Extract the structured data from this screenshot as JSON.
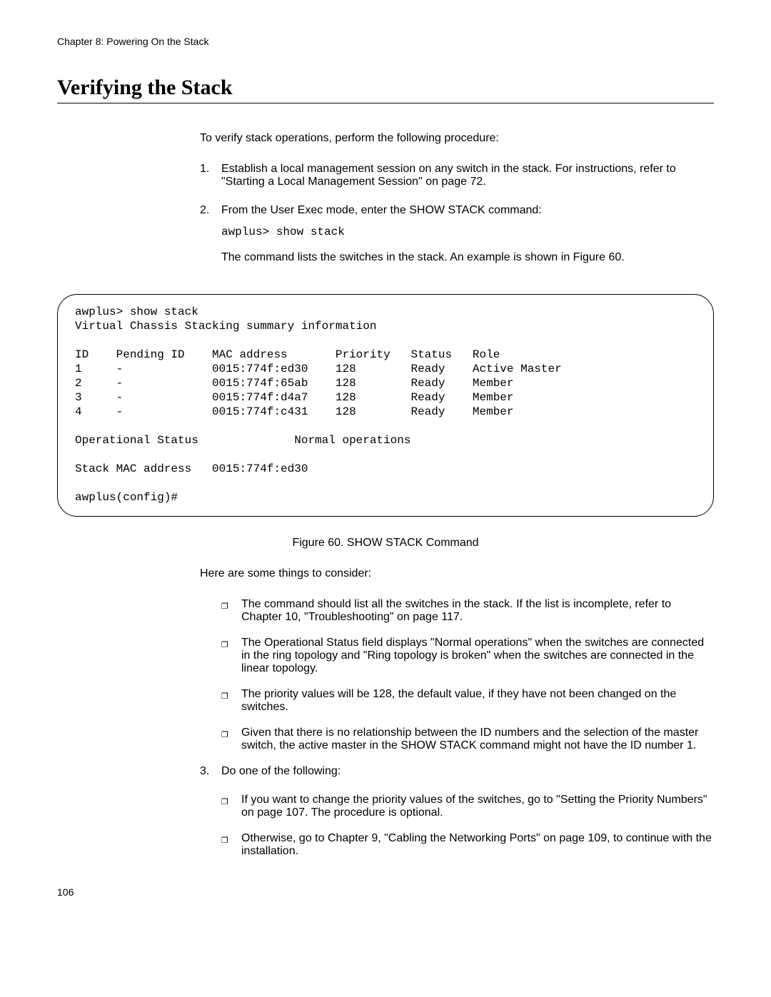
{
  "header": {
    "chapter": "Chapter 8: Powering On the Stack"
  },
  "title": "Verifying the Stack",
  "intro": "To verify stack operations, perform the following procedure:",
  "steps": {
    "s1": {
      "num": "1.",
      "text": "Establish a local management session on any switch in the stack. For instructions, refer to \"Starting a Local Management Session\" on page 72."
    },
    "s2": {
      "num": "2.",
      "text": "From the User Exec mode, enter the SHOW STACK command:",
      "cmd": "awplus> show stack",
      "followup": "The command lists the switches in the stack. An example is shown in Figure 60."
    },
    "s3": {
      "num": "3.",
      "text": "Do one of the following:"
    }
  },
  "terminal": {
    "l1": "awplus> show stack",
    "l2": "Virtual Chassis Stacking summary information",
    "l3": "ID    Pending ID    MAC address       Priority   Status   Role",
    "l4": "1     -             0015:774f:ed30    128        Ready    Active Master",
    "l5": "2     -             0015:774f:65ab    128        Ready    Member",
    "l6": "3     -             0015:774f:d4a7    128        Ready    Member",
    "l7": "4     -             0015:774f:c431    128        Ready    Member",
    "l8": "Operational Status              Normal operations",
    "l9": "Stack MAC address   0015:774f:ed30",
    "l10": "awplus(config)#"
  },
  "figure_caption": "Figure 60. SHOW STACK Command",
  "consider_intro": "Here are some things to consider:",
  "bullets1": {
    "b1": "The command should list all the switches in the stack. If the list is incomplete, refer to Chapter 10, \"Troubleshooting\" on page 117.",
    "b2": "The Operational Status field displays \"Normal operations\" when the switches are connected in the ring topology and \"Ring topology is broken\" when the switches are connected in the linear topology.",
    "b3": "The priority values will be 128, the default value, if they have not been changed on the switches.",
    "b4": "Given that there is no relationship between the ID numbers and the selection of the master switch, the active master in the SHOW STACK command might not have the ID number 1."
  },
  "bullets2": {
    "b1": "If you want to change the priority values of the switches, go to \"Setting the Priority Numbers\" on page 107. The procedure is optional.",
    "b2": "Otherwise, go to Chapter 9, \"Cabling the Networking Ports\" on page 109, to continue with the installation."
  },
  "page_number": "106",
  "bullet_glyph": "❐"
}
